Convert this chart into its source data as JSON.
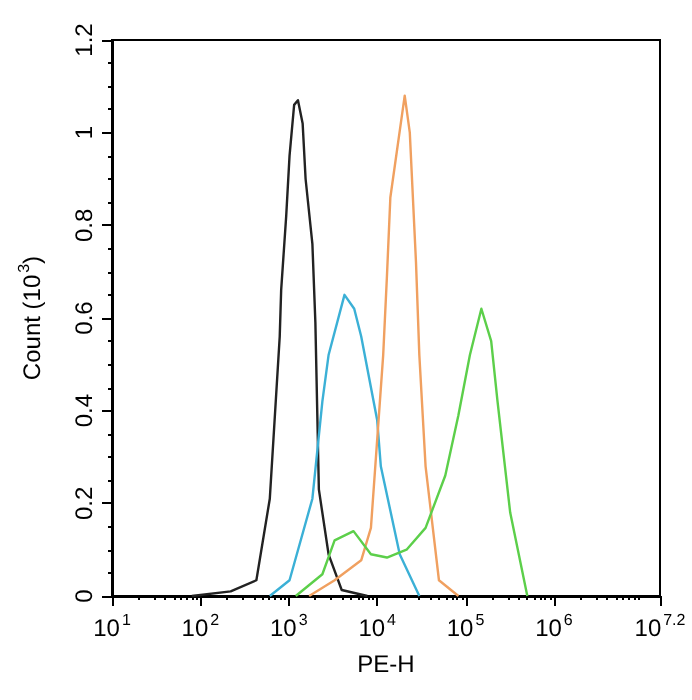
{
  "chart_data": {
    "type": "line",
    "xlabel": "PE-H",
    "ylabel": "Count (10$^{3}$)",
    "log": "x",
    "xlim": [
      10,
      15848931.92
    ],
    "xticks": [
      {
        "value": 10,
        "label": "10$^{1}$"
      },
      {
        "value": 100,
        "label": "10$^{2}$"
      },
      {
        "value": 1000,
        "label": "10$^{3}$"
      },
      {
        "value": 10000,
        "label": "10$^{4}$"
      },
      {
        "value": 100000,
        "label": "10$^{5}$"
      },
      {
        "value": 1000000,
        "label": "10$^{6}$"
      },
      {
        "value": 15848931.92,
        "label": "10$^{7.2}$"
      }
    ],
    "ylim": [
      0,
      1.2
    ],
    "yticks": [
      0,
      0.2,
      0.4,
      0.6,
      0.8,
      1,
      1.2
    ],
    "grid": false,
    "marker": "none",
    "line_style": "solid",
    "series": [
      {
        "color": "#222222",
        "x": [
          80,
          220,
          430,
          610,
          790,
          820,
          935,
          1020,
          1150,
          1270,
          1435,
          1550,
          1850,
          2000,
          2190,
          2820,
          3970,
          7750
        ],
        "values": [
          0,
          0.01,
          0.034,
          0.21,
          0.56,
          0.66,
          0.82,
          0.95,
          1.06,
          1.07,
          1.02,
          0.9,
          0.76,
          0.59,
          0.23,
          0.09,
          0.013,
          0
        ]
      },
      {
        "color": "#3bb0d6",
        "x": [
          610,
          1020,
          1850,
          2400,
          2820,
          4270,
          5500,
          6600,
          10000,
          11000,
          18000,
          30000
        ],
        "values": [
          0,
          0.034,
          0.21,
          0.42,
          0.52,
          0.65,
          0.62,
          0.56,
          0.38,
          0.28,
          0.09,
          0
        ]
      },
      {
        "color": "#f0a060",
        "x": [
          1700,
          3300,
          6600,
          8500,
          11700,
          12900,
          14100,
          20500,
          23400,
          27500,
          30000,
          35300,
          50000,
          83000
        ],
        "values": [
          0,
          0.034,
          0.077,
          0.147,
          0.52,
          0.69,
          0.86,
          1.08,
          1.0,
          0.72,
          0.52,
          0.28,
          0.034,
          0
        ]
      },
      {
        "color": "#5ccf4a",
        "x": [
          1200,
          2400,
          3300,
          5400,
          8500,
          12900,
          21500,
          35300,
          59000,
          83000,
          112000,
          151000,
          195000,
          230000,
          320000,
          500000
        ],
        "values": [
          0,
          0.047,
          0.12,
          0.14,
          0.09,
          0.083,
          0.1,
          0.147,
          0.26,
          0.39,
          0.52,
          0.62,
          0.55,
          0.42,
          0.18,
          0
        ]
      }
    ]
  }
}
